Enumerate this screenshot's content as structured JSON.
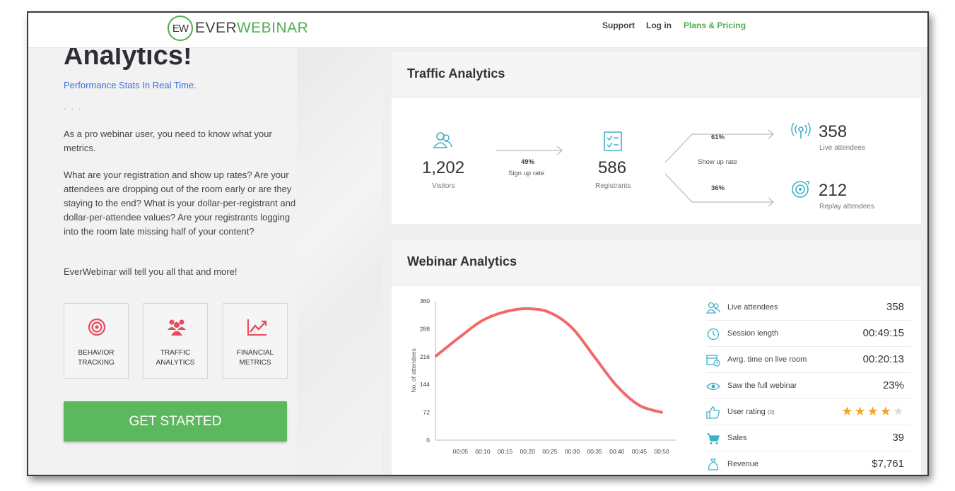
{
  "header": {
    "logo_mark": "EW",
    "logo_prefix": "EVER",
    "logo_suffix": "WEBINAR",
    "nav": [
      "Support",
      "Log in",
      "Plans & Pricing"
    ],
    "accent": "#4caf50"
  },
  "left": {
    "heading": "Analytics!",
    "subtitle": "Performance Stats In Real Time.",
    "dots": ". . .",
    "p1": "As a pro webinar user, you need to know what your metrics.",
    "p2": "What are your registration and show up rates? Are your attendees are dropping out of the room early or are they staying to the end? What is your dollar-per-registrant and dollar-per-attendee values? Are your registrants logging into the room late missing half of your content?",
    "p3": "EverWebinar will tell you all that and more!",
    "features": [
      {
        "icon": "target-icon",
        "line1": "BEHAVIOR",
        "line2": "TRACKING"
      },
      {
        "icon": "people-icon",
        "line1": "TRAFFIC",
        "line2": "ANALYTICS"
      },
      {
        "icon": "trend-chart-icon",
        "line1": "FINANCIAL",
        "line2": "METRICS"
      }
    ],
    "cta": "GET STARTED",
    "cta_color": "#5cb85c",
    "icon_color": "#e84a5f"
  },
  "traffic": {
    "title": "Traffic Analytics",
    "visitors": "1,202",
    "visitors_label": "Visitors",
    "signup_pct": "49%",
    "signup_label": "Sign up rate",
    "registrants": "586",
    "registrants_label": "Registrants",
    "showup_top": "61%",
    "showup_label": "Show up rate",
    "showup_bottom": "36%",
    "live": "358",
    "live_label": "Live attendees",
    "replay": "212",
    "replay_label": "Replay attendees",
    "icon_color": "#3bb0c9"
  },
  "webinar": {
    "title": "Webinar Analytics",
    "metrics": [
      {
        "icon": "people-icon",
        "label": "Live attendees",
        "value": "358"
      },
      {
        "icon": "clock-icon",
        "label": "Session length",
        "value": "00:49:15"
      },
      {
        "icon": "calendar-clock-icon",
        "label": "Avrg. time on live room",
        "value": "00:20:13"
      },
      {
        "icon": "eye-icon",
        "label": "Saw the full webinar",
        "value": "23%"
      },
      {
        "icon": "thumbs-up-icon",
        "label": "User rating",
        "label_suffix": "(0)",
        "rating": 4,
        "max": 5
      },
      {
        "icon": "cart-icon",
        "label": "Sales",
        "value": "39"
      },
      {
        "icon": "money-bag-icon",
        "label": "Revenue",
        "value": "$7,761"
      }
    ]
  },
  "chart_data": {
    "type": "line",
    "ylabel": "No. of attendees",
    "xlabel": "",
    "ylim": [
      0,
      360
    ],
    "yticks": [
      0,
      72,
      144,
      216,
      288,
      360
    ],
    "x": [
      "00:05",
      "00:10",
      "00:15",
      "00:20",
      "00:25",
      "00:30",
      "00:35",
      "00:40",
      "00:45",
      "00:50"
    ],
    "curve_x": [
      "00:01",
      "00:05",
      "00:10",
      "00:15",
      "00:20",
      "00:25",
      "00:30",
      "00:35",
      "00:40",
      "00:45",
      "00:50"
    ],
    "curve_y": [
      218,
      268,
      310,
      332,
      340,
      330,
      290,
      215,
      140,
      90,
      72
    ],
    "line_color": "#ef5a5a",
    "grid": false
  }
}
